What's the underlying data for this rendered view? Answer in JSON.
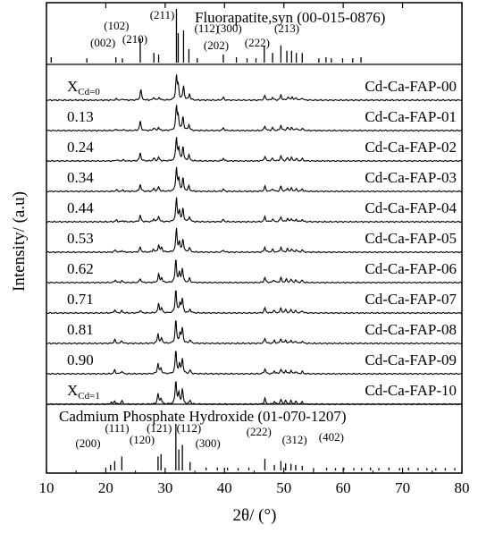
{
  "chart_data": {
    "type": "line",
    "xlabel": "2θ/ (°)",
    "ylabel": "Intensity/ (a.u)",
    "xlim": [
      10,
      80
    ],
    "x_ticks": [
      10,
      20,
      30,
      40,
      50,
      60,
      70,
      80
    ],
    "grid": false,
    "reference_top": {
      "name": "Fluorapatite,syn (00-015-0876)",
      "lines": [
        {
          "x": 10.8,
          "h": 0.1
        },
        {
          "x": 16.8,
          "h": 0.08
        },
        {
          "x": 21.7,
          "h": 0.1
        },
        {
          "x": 22.8,
          "h": 0.08
        },
        {
          "x": 25.8,
          "h": 0.45
        },
        {
          "x": 28.1,
          "h": 0.18
        },
        {
          "x": 28.9,
          "h": 0.15
        },
        {
          "x": 31.9,
          "h": 1.0
        },
        {
          "x": 32.2,
          "h": 0.55
        },
        {
          "x": 33.1,
          "h": 0.6
        },
        {
          "x": 34.0,
          "h": 0.25
        },
        {
          "x": 35.4,
          "h": 0.08
        },
        {
          "x": 39.8,
          "h": 0.15
        },
        {
          "x": 42.0,
          "h": 0.1
        },
        {
          "x": 43.8,
          "h": 0.08
        },
        {
          "x": 45.3,
          "h": 0.08
        },
        {
          "x": 46.7,
          "h": 0.3
        },
        {
          "x": 48.1,
          "h": 0.18
        },
        {
          "x": 49.5,
          "h": 0.32
        },
        {
          "x": 50.5,
          "h": 0.22
        },
        {
          "x": 51.3,
          "h": 0.22
        },
        {
          "x": 52.1,
          "h": 0.18
        },
        {
          "x": 53.1,
          "h": 0.18
        },
        {
          "x": 55.9,
          "h": 0.08
        },
        {
          "x": 57.1,
          "h": 0.1
        },
        {
          "x": 58.0,
          "h": 0.08
        },
        {
          "x": 59.9,
          "h": 0.08
        },
        {
          "x": 61.6,
          "h": 0.08
        },
        {
          "x": 63.0,
          "h": 0.1
        }
      ],
      "hkl_labels": [
        "(002)",
        "(102)",
        "(210)",
        "(211)",
        "(112)",
        "(300)",
        "(202)",
        "(222)",
        "(213)"
      ]
    },
    "reference_bottom": {
      "name": "Cadmium Phosphate Hydroxide (01-070-1207)",
      "lines": [
        {
          "x": 20.8,
          "h": 0.12
        },
        {
          "x": 21.5,
          "h": 0.2
        },
        {
          "x": 22.7,
          "h": 0.3
        },
        {
          "x": 28.8,
          "h": 0.3
        },
        {
          "x": 29.3,
          "h": 0.35
        },
        {
          "x": 31.8,
          "h": 1.0
        },
        {
          "x": 32.3,
          "h": 0.45
        },
        {
          "x": 32.9,
          "h": 0.55
        },
        {
          "x": 34.2,
          "h": 0.18
        },
        {
          "x": 36.9,
          "h": 0.06
        },
        {
          "x": 38.8,
          "h": 0.06
        },
        {
          "x": 40.5,
          "h": 0.06
        },
        {
          "x": 42.3,
          "h": 0.05
        },
        {
          "x": 44.1,
          "h": 0.06
        },
        {
          "x": 46.8,
          "h": 0.25
        },
        {
          "x": 48.4,
          "h": 0.12
        },
        {
          "x": 49.5,
          "h": 0.2
        },
        {
          "x": 50.3,
          "h": 0.15
        },
        {
          "x": 51.2,
          "h": 0.14
        },
        {
          "x": 52.0,
          "h": 0.12
        },
        {
          "x": 53.1,
          "h": 0.1
        },
        {
          "x": 55.0,
          "h": 0.05
        },
        {
          "x": 57.2,
          "h": 0.06
        },
        {
          "x": 58.7,
          "h": 0.05
        },
        {
          "x": 60.1,
          "h": 0.06
        },
        {
          "x": 61.8,
          "h": 0.05
        },
        {
          "x": 63.1,
          "h": 0.05
        },
        {
          "x": 64.6,
          "h": 0.06
        },
        {
          "x": 66.0,
          "h": 0.05
        },
        {
          "x": 67.7,
          "h": 0.06
        },
        {
          "x": 69.5,
          "h": 0.05
        },
        {
          "x": 71.0,
          "h": 0.06
        },
        {
          "x": 72.6,
          "h": 0.05
        },
        {
          "x": 74.1,
          "h": 0.05
        },
        {
          "x": 75.6,
          "h": 0.05
        },
        {
          "x": 77.2,
          "h": 0.05
        },
        {
          "x": 78.8,
          "h": 0.05
        }
      ],
      "hkl_labels": [
        "(200)",
        "(111)",
        "(120)",
        "(121)",
        "(112)",
        "(300)",
        "(222)",
        "(312)",
        "(402)"
      ]
    },
    "series": [
      {
        "name": "Cd-Ca-FAP-00",
        "x_cd_label": "X",
        "x_cd_sub": "Cd=0",
        "peaks": [
          [
            21.8,
            0.06
          ],
          [
            22.9,
            0.05
          ],
          [
            25.9,
            0.45
          ],
          [
            28.1,
            0.12
          ],
          [
            29.0,
            0.12
          ],
          [
            31.9,
            1.0
          ],
          [
            32.2,
            0.55
          ],
          [
            33.1,
            0.6
          ],
          [
            34.1,
            0.25
          ],
          [
            39.8,
            0.12
          ],
          [
            46.8,
            0.2
          ],
          [
            48.1,
            0.12
          ],
          [
            49.5,
            0.22
          ],
          [
            50.7,
            0.14
          ],
          [
            51.4,
            0.14
          ],
          [
            52.1,
            0.1
          ],
          [
            53.1,
            0.1
          ]
        ]
      },
      {
        "name": "Cd-Ca-FAP-01",
        "x_cd_label": "0.13",
        "peaks": [
          [
            21.8,
            0.06
          ],
          [
            22.9,
            0.05
          ],
          [
            25.8,
            0.4
          ],
          [
            28.1,
            0.12
          ],
          [
            28.9,
            0.14
          ],
          [
            31.9,
            1.0
          ],
          [
            32.2,
            0.55
          ],
          [
            33.0,
            0.6
          ],
          [
            34.0,
            0.25
          ],
          [
            39.8,
            0.12
          ],
          [
            46.8,
            0.2
          ],
          [
            48.1,
            0.12
          ],
          [
            49.5,
            0.22
          ],
          [
            50.6,
            0.14
          ],
          [
            51.3,
            0.14
          ],
          [
            52.1,
            0.1
          ],
          [
            53.1,
            0.1
          ]
        ]
      },
      {
        "name": "Cd-Ca-FAP-02",
        "x_cd_label": "0.24",
        "peaks": [
          [
            21.8,
            0.06
          ],
          [
            22.9,
            0.05
          ],
          [
            25.8,
            0.35
          ],
          [
            28.1,
            0.12
          ],
          [
            28.9,
            0.16
          ],
          [
            31.9,
            1.0
          ],
          [
            32.3,
            0.5
          ],
          [
            33.0,
            0.6
          ],
          [
            34.0,
            0.25
          ],
          [
            39.8,
            0.12
          ],
          [
            46.8,
            0.2
          ],
          [
            48.1,
            0.12
          ],
          [
            49.5,
            0.22
          ],
          [
            50.6,
            0.14
          ],
          [
            51.3,
            0.14
          ],
          [
            52.1,
            0.1
          ],
          [
            53.1,
            0.1
          ]
        ]
      },
      {
        "name": "Cd-Ca-FAP-03",
        "x_cd_label": "0.34",
        "peaks": [
          [
            21.8,
            0.07
          ],
          [
            22.9,
            0.05
          ],
          [
            25.8,
            0.3
          ],
          [
            28.1,
            0.12
          ],
          [
            28.9,
            0.2
          ],
          [
            31.9,
            1.0
          ],
          [
            32.3,
            0.5
          ],
          [
            33.0,
            0.55
          ],
          [
            34.0,
            0.22
          ],
          [
            39.8,
            0.1
          ],
          [
            46.8,
            0.22
          ],
          [
            48.1,
            0.12
          ],
          [
            49.5,
            0.22
          ],
          [
            50.6,
            0.14
          ],
          [
            51.3,
            0.14
          ],
          [
            52.1,
            0.1
          ],
          [
            53.1,
            0.1
          ]
        ]
      },
      {
        "name": "Cd-Ca-FAP-04",
        "x_cd_label": "0.44",
        "peaks": [
          [
            21.8,
            0.08
          ],
          [
            22.9,
            0.05
          ],
          [
            25.8,
            0.28
          ],
          [
            28.1,
            0.12
          ],
          [
            28.9,
            0.25
          ],
          [
            31.9,
            1.0
          ],
          [
            32.4,
            0.45
          ],
          [
            33.0,
            0.55
          ],
          [
            34.1,
            0.22
          ],
          [
            39.8,
            0.1
          ],
          [
            46.8,
            0.22
          ],
          [
            48.1,
            0.12
          ],
          [
            49.5,
            0.22
          ],
          [
            50.6,
            0.14
          ],
          [
            51.3,
            0.14
          ],
          [
            52.1,
            0.1
          ],
          [
            53.1,
            0.1
          ]
        ]
      },
      {
        "name": "Cd-Ca-FAP-05",
        "x_cd_label": "0.53",
        "peaks": [
          [
            21.6,
            0.1
          ],
          [
            22.7,
            0.07
          ],
          [
            25.8,
            0.22
          ],
          [
            28.0,
            0.12
          ],
          [
            28.9,
            0.3
          ],
          [
            29.4,
            0.2
          ],
          [
            31.9,
            1.0
          ],
          [
            32.4,
            0.4
          ],
          [
            33.0,
            0.55
          ],
          [
            34.1,
            0.2
          ],
          [
            39.8,
            0.1
          ],
          [
            46.8,
            0.22
          ],
          [
            48.1,
            0.12
          ],
          [
            49.5,
            0.22
          ],
          [
            50.6,
            0.14
          ],
          [
            51.3,
            0.14
          ],
          [
            52.1,
            0.1
          ],
          [
            53.1,
            0.1
          ]
        ]
      },
      {
        "name": "Cd-Ca-FAP-06",
        "x_cd_label": "0.62",
        "peaks": [
          [
            21.6,
            0.12
          ],
          [
            22.7,
            0.08
          ],
          [
            25.8,
            0.18
          ],
          [
            28.9,
            0.35
          ],
          [
            29.4,
            0.2
          ],
          [
            31.8,
            1.0
          ],
          [
            32.4,
            0.4
          ],
          [
            32.9,
            0.6
          ],
          [
            34.1,
            0.18
          ],
          [
            46.8,
            0.22
          ],
          [
            48.3,
            0.12
          ],
          [
            49.5,
            0.2
          ],
          [
            50.4,
            0.14
          ],
          [
            51.2,
            0.14
          ],
          [
            52.0,
            0.1
          ],
          [
            53.1,
            0.1
          ]
        ]
      },
      {
        "name": "Cd-Ca-FAP-07",
        "x_cd_label": "0.71",
        "peaks": [
          [
            21.5,
            0.14
          ],
          [
            22.7,
            0.1
          ],
          [
            25.8,
            0.12
          ],
          [
            28.9,
            0.4
          ],
          [
            29.4,
            0.2
          ],
          [
            31.8,
            1.0
          ],
          [
            32.5,
            0.4
          ],
          [
            32.9,
            0.6
          ],
          [
            34.2,
            0.16
          ],
          [
            46.8,
            0.22
          ],
          [
            48.3,
            0.12
          ],
          [
            49.5,
            0.2
          ],
          [
            50.3,
            0.14
          ],
          [
            51.2,
            0.14
          ],
          [
            52.0,
            0.1
          ],
          [
            53.1,
            0.1
          ]
        ]
      },
      {
        "name": "Cd-Ca-FAP-08",
        "x_cd_label": "0.81",
        "peaks": [
          [
            21.5,
            0.16
          ],
          [
            22.7,
            0.12
          ],
          [
            28.8,
            0.42
          ],
          [
            29.4,
            0.22
          ],
          [
            31.8,
            1.0
          ],
          [
            32.5,
            0.4
          ],
          [
            32.9,
            0.65
          ],
          [
            34.2,
            0.16
          ],
          [
            46.8,
            0.22
          ],
          [
            48.4,
            0.12
          ],
          [
            49.5,
            0.2
          ],
          [
            50.3,
            0.14
          ],
          [
            51.2,
            0.14
          ],
          [
            52.0,
            0.1
          ],
          [
            53.1,
            0.1
          ]
        ]
      },
      {
        "name": "Cd-Ca-FAP-09",
        "x_cd_label": "0.90",
        "peaks": [
          [
            21.5,
            0.16
          ],
          [
            22.7,
            0.12
          ],
          [
            28.8,
            0.45
          ],
          [
            29.3,
            0.22
          ],
          [
            31.8,
            1.0
          ],
          [
            32.4,
            0.4
          ],
          [
            32.9,
            0.65
          ],
          [
            34.2,
            0.16
          ],
          [
            46.8,
            0.22
          ],
          [
            48.4,
            0.12
          ],
          [
            49.5,
            0.2
          ],
          [
            50.3,
            0.14
          ],
          [
            51.2,
            0.14
          ],
          [
            52.0,
            0.1
          ],
          [
            53.1,
            0.1
          ]
        ]
      },
      {
        "name": "Cd-Ca-FAP-10",
        "x_cd_label": "X",
        "x_cd_sub": "Cd=1",
        "peaks": [
          [
            20.9,
            0.08
          ],
          [
            21.5,
            0.15
          ],
          [
            22.7,
            0.15
          ],
          [
            28.8,
            0.45
          ],
          [
            29.3,
            0.25
          ],
          [
            31.8,
            1.0
          ],
          [
            32.3,
            0.45
          ],
          [
            32.9,
            0.65
          ],
          [
            34.2,
            0.16
          ],
          [
            46.8,
            0.25
          ],
          [
            48.4,
            0.12
          ],
          [
            49.5,
            0.2
          ],
          [
            50.3,
            0.15
          ],
          [
            51.2,
            0.14
          ],
          [
            52.0,
            0.12
          ],
          [
            53.1,
            0.1
          ]
        ]
      }
    ]
  }
}
